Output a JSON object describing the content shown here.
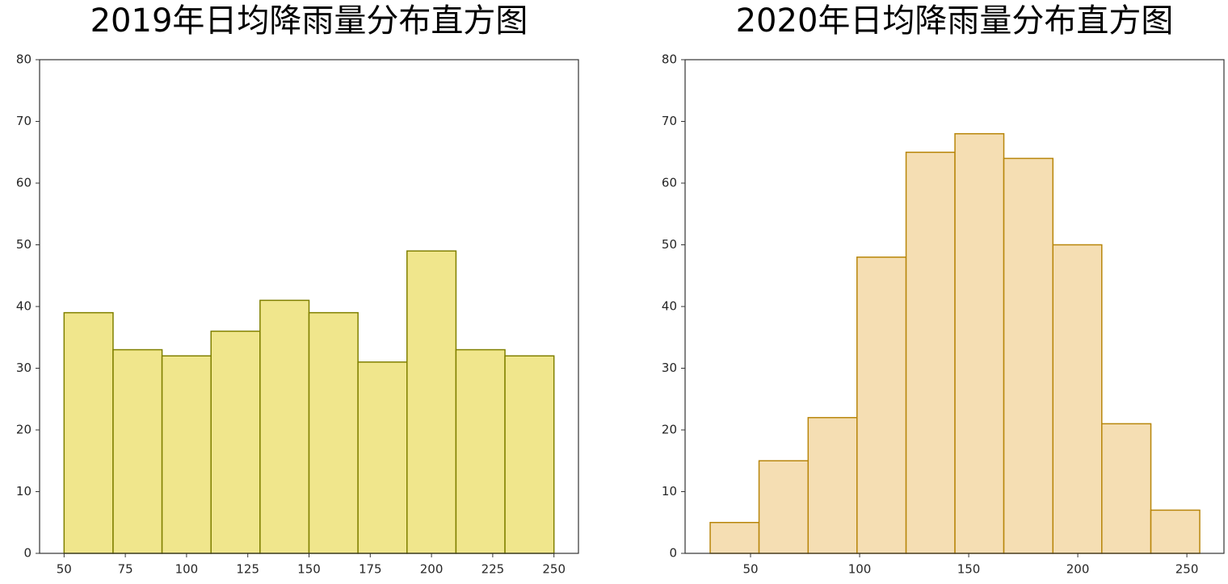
{
  "chart_data": [
    {
      "type": "histogram",
      "title": "2019年日均降雨量分布直方图",
      "bins": [
        50,
        70,
        90,
        110,
        130,
        150,
        170,
        190,
        210,
        230,
        250
      ],
      "counts": [
        39,
        33,
        32,
        36,
        41,
        39,
        31,
        49,
        33,
        32
      ],
      "color": "#f0e68c",
      "edgecolor": "#808000",
      "xlim": [
        40,
        260
      ],
      "xticks": [
        50,
        75,
        100,
        125,
        150,
        175,
        200,
        225,
        250
      ],
      "ylim": [
        0,
        80
      ],
      "yticks": [
        0,
        10,
        20,
        30,
        40,
        50,
        60,
        70,
        80
      ]
    },
    {
      "type": "histogram",
      "title": "2020年日均降雨量分布直方图",
      "bins": [
        31.5,
        53.9,
        76.4,
        98.8,
        121.3,
        143.7,
        166.1,
        188.6,
        211.0,
        233.5,
        255.9
      ],
      "counts": [
        5,
        15,
        22,
        48,
        65,
        68,
        64,
        50,
        21,
        7
      ],
      "color": "#f5deb3",
      "edgecolor": "#b8860b",
      "xlim": [
        20,
        267
      ],
      "xticks": [
        50,
        100,
        150,
        200,
        250
      ],
      "ylim": [
        0,
        80
      ],
      "yticks": [
        0,
        10,
        20,
        30,
        40,
        50,
        60,
        70,
        80
      ]
    }
  ]
}
